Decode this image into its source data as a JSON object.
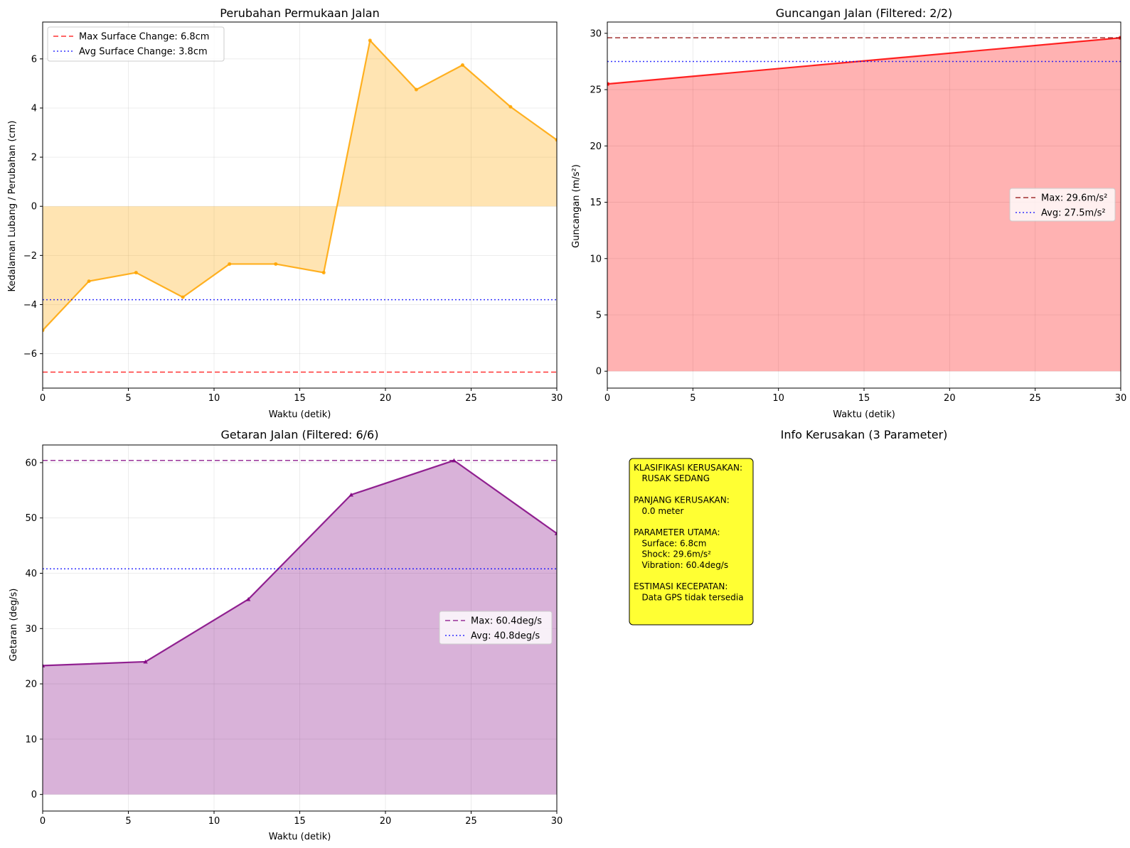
{
  "chart_data": [
    {
      "type": "line",
      "title": "Perubahan Permukaan Jalan",
      "xlabel": "Waktu (detik)",
      "ylabel": "Kedalaman Lubang / Perubahan (cm)",
      "xlim": [
        0,
        30
      ],
      "ylim": [
        -7.4,
        7.5
      ],
      "xticks": [
        0,
        5,
        10,
        15,
        20,
        25,
        30
      ],
      "yticks": [
        -6,
        -4,
        -2,
        0,
        2,
        4,
        6
      ],
      "ytick_labels": [
        "−6",
        "−4",
        "−2",
        "0",
        "2",
        "4",
        "6"
      ],
      "grid": true,
      "legend_position": "upper-left",
      "fill_to": 0,
      "series": [
        {
          "name": "",
          "color": "#FFA500",
          "marker": "circle",
          "x": [
            0,
            2.7,
            5.45,
            8.18,
            10.9,
            13.6,
            16.4,
            19.1,
            21.8,
            24.5,
            27.3,
            30
          ],
          "values": [
            -5.05,
            -3.05,
            -2.7,
            -3.7,
            -2.35,
            -2.35,
            -2.7,
            6.75,
            4.75,
            5.75,
            4.05,
            2.7
          ]
        }
      ],
      "reference_lines": [
        {
          "name": "Max Surface Change: 6.8cm",
          "y": -6.75,
          "color": "#FF0000",
          "style": "dashed"
        },
        {
          "name": "Avg Surface Change: 3.8cm",
          "y": -3.8,
          "color": "#0000FF",
          "style": "dotted"
        }
      ]
    },
    {
      "type": "area",
      "title": "Guncangan Jalan (Filtered: 2/2)",
      "xlabel": "Waktu (detik)",
      "ylabel": "Guncangan (m/s²)",
      "xlim": [
        0,
        30
      ],
      "ylim": [
        -1.5,
        31
      ],
      "xticks": [
        0,
        5,
        10,
        15,
        20,
        25,
        30
      ],
      "yticks": [
        0,
        5,
        10,
        15,
        20,
        25,
        30
      ],
      "ytick_labels": [
        "0",
        "5",
        "10",
        "15",
        "20",
        "25",
        "30"
      ],
      "grid": true,
      "legend_position": "center-right",
      "fill_to": 0,
      "series": [
        {
          "name": "",
          "color": "#FF0000",
          "marker": "square",
          "x": [
            0,
            30
          ],
          "values": [
            25.5,
            29.6
          ]
        }
      ],
      "reference_lines": [
        {
          "name": "Max: 29.6m/s²",
          "y": 29.6,
          "color": "#8B0000",
          "style": "dashed"
        },
        {
          "name": "Avg: 27.5m/s²",
          "y": 27.5,
          "color": "#0000FF",
          "style": "dotted"
        }
      ]
    },
    {
      "type": "area",
      "title": "Getaran Jalan (Filtered: 6/6)",
      "xlabel": "Waktu (detik)",
      "ylabel": "Getaran (deg/s)",
      "xlim": [
        0,
        30
      ],
      "ylim": [
        -3,
        63.2
      ],
      "xticks": [
        0,
        5,
        10,
        15,
        20,
        25,
        30
      ],
      "yticks": [
        0,
        10,
        20,
        30,
        40,
        50,
        60
      ],
      "ytick_labels": [
        "0",
        "10",
        "20",
        "30",
        "40",
        "50",
        "60"
      ],
      "grid": true,
      "legend_position": "center-right",
      "fill_to": 0,
      "series": [
        {
          "name": "",
          "color": "#800080",
          "marker": "triangle",
          "x": [
            0,
            6,
            12,
            18,
            24,
            30
          ],
          "values": [
            23.3,
            24.0,
            35.3,
            54.2,
            60.4,
            47.2
          ]
        }
      ],
      "reference_lines": [
        {
          "name": "Max: 60.4deg/s",
          "y": 60.4,
          "color": "#800080",
          "style": "dashed"
        },
        {
          "name": "Avg: 40.8deg/s",
          "y": 40.8,
          "color": "#0000FF",
          "style": "dotted"
        }
      ]
    }
  ],
  "info_panel": {
    "title": "Info Kerusakan (3 Parameter)",
    "background": "#FFFF33",
    "lines": [
      "KLASIFIKASI KERUSAKAN:",
      "   RUSAK SEDANG",
      "",
      "PANJANG KERUSAKAN:",
      "   0.0 meter",
      "",
      "PARAMETER UTAMA:",
      "   Surface: 6.8cm",
      "   Shock: 29.6m/s²",
      "   Vibration: 60.4deg/s",
      "",
      "ESTIMASI KECEPATAN:",
      "   Data GPS tidak tersedia"
    ]
  }
}
